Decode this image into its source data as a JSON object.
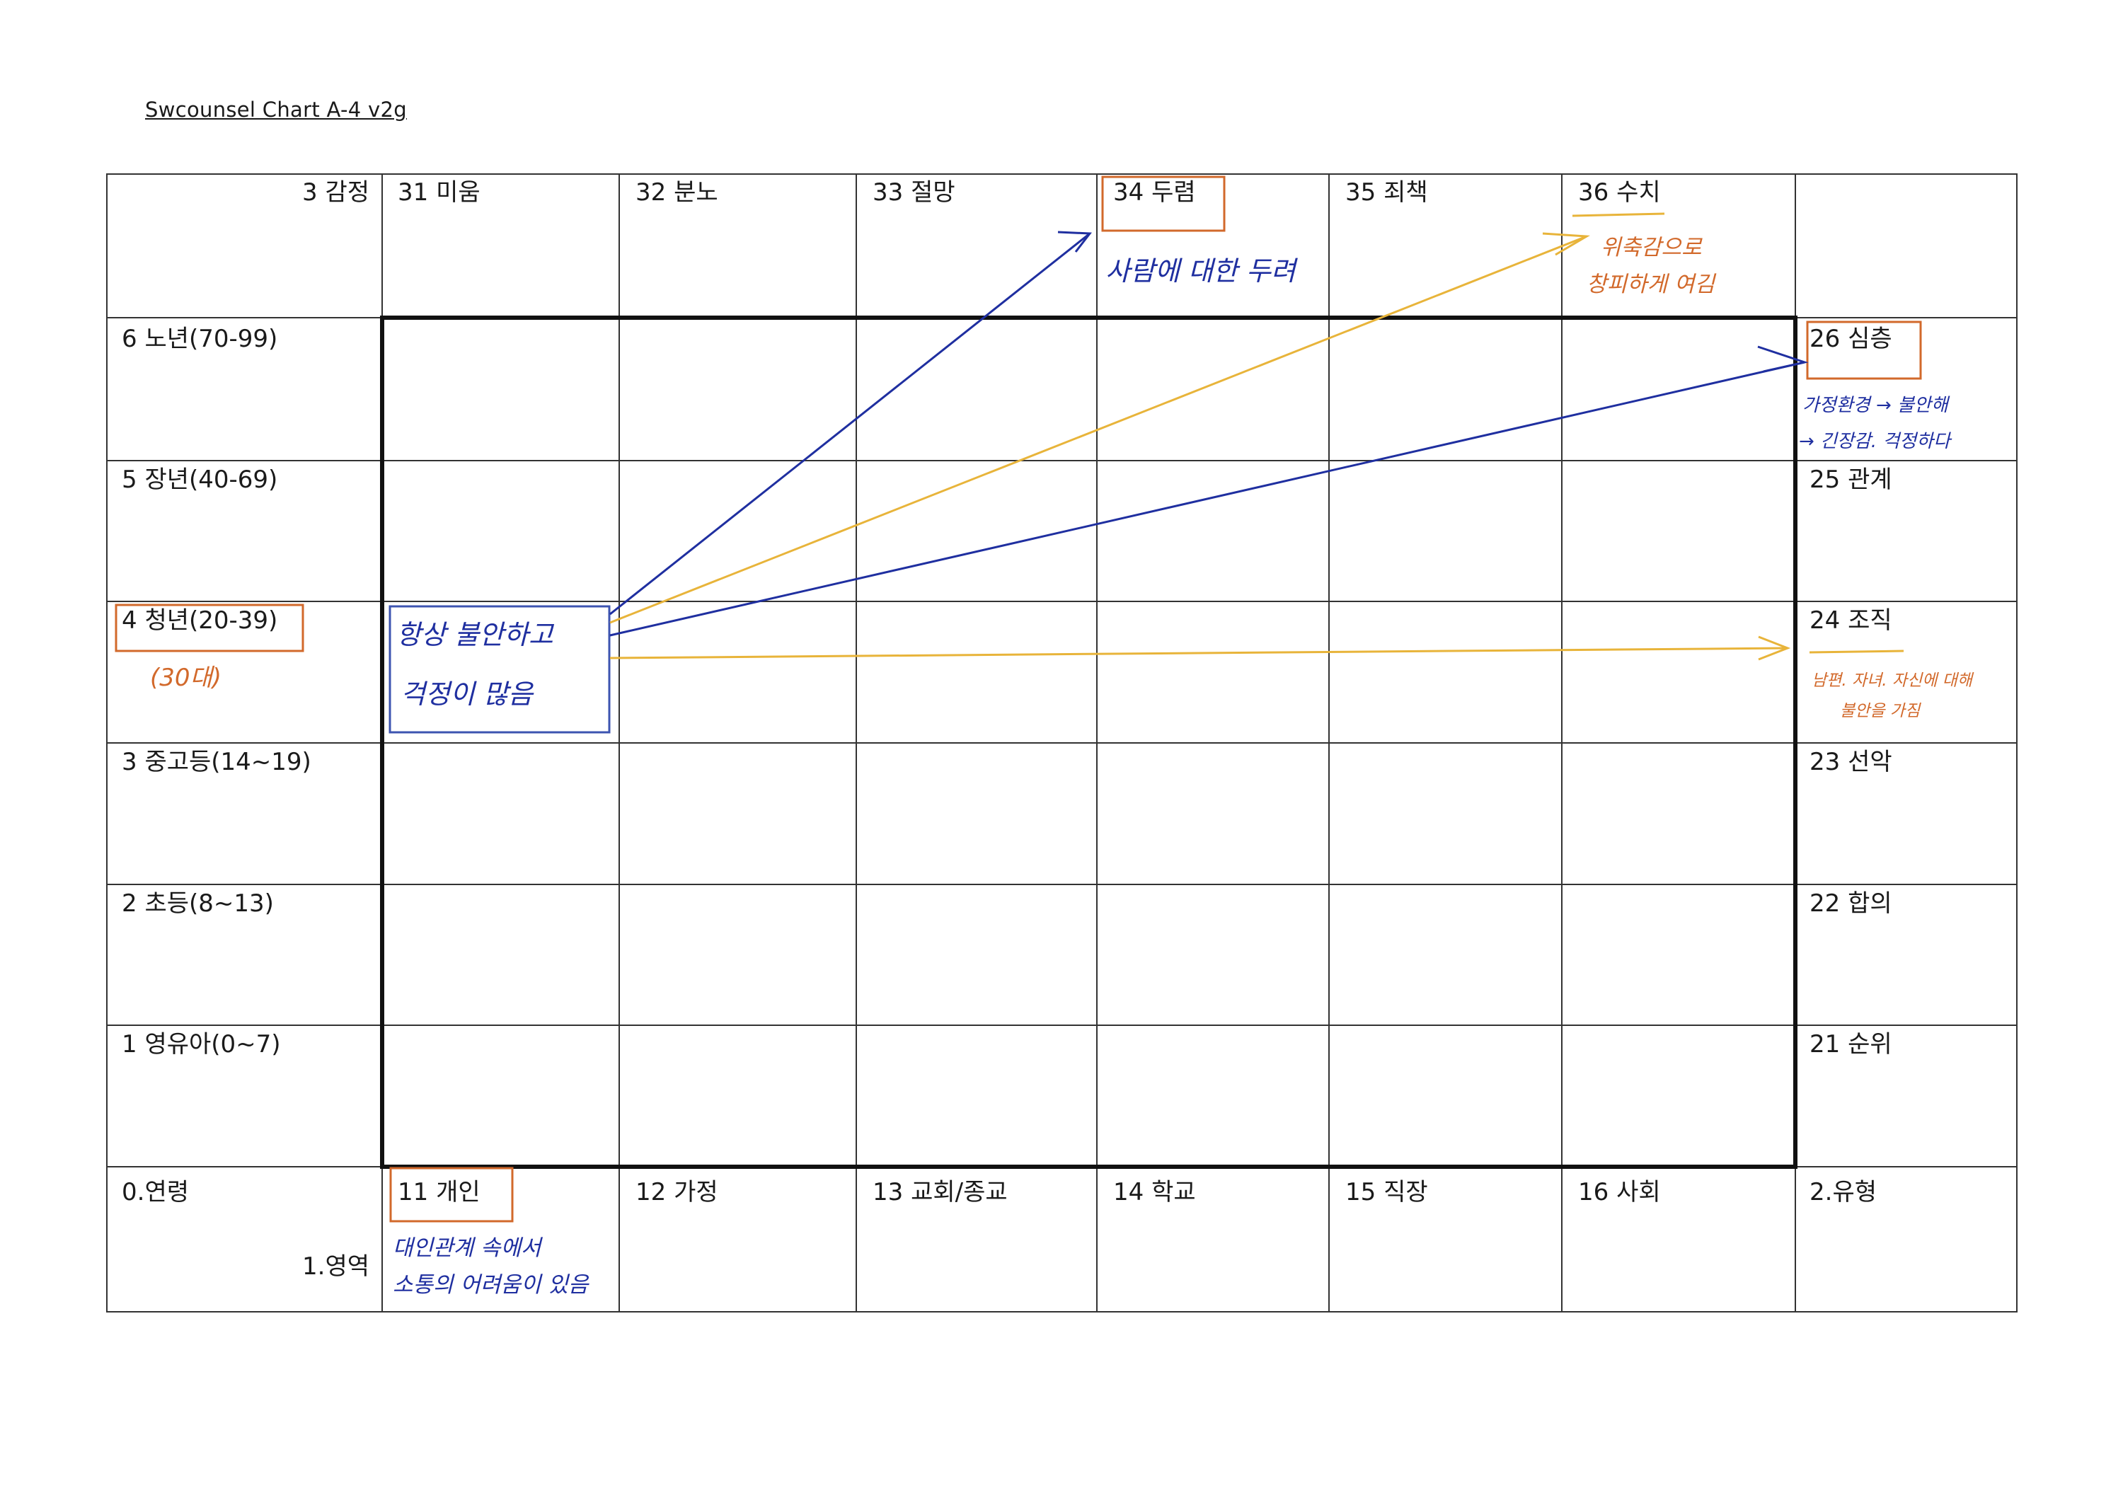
{
  "document": {
    "title": "Swcounsel Chart A-4 v2g"
  },
  "corner": {
    "emotion_axis": "3 감정",
    "age_axis": "0.연령",
    "domain_axis": "1.영역",
    "type_axis": "2.유형"
  },
  "emotions": [
    "31 미움",
    "32 분노",
    "33 절망",
    "34 두렴",
    "35 죄책",
    "36 수치"
  ],
  "ages": [
    "6 노년(70-99)",
    "5 장년(40-69)",
    "4 청년(20-39)",
    "3 중고등(14~19)",
    "2 초등(8~13)",
    "1 영유아(0~7)"
  ],
  "types": [
    "26 심층",
    "25 관계",
    "24 조직",
    "23 선악",
    "22 합의",
    "21 순위"
  ],
  "domains": [
    "11 개인",
    "12 가정",
    "13 교회/종교",
    "14 학교",
    "15 직장",
    "16 사회"
  ],
  "notes": {
    "age_note": "(30대)",
    "center_note_line1": "항상 불안하고",
    "center_note_line2": "걱정이 많음",
    "fear_note": "사람에 대한 두려",
    "shame_note_line1": "위축감으로",
    "shame_note_line2": "창피하게 여김",
    "deep_note_line1": "가정환경 → 불안해",
    "deep_note_line2": "→ 긴장감. 걱정하다",
    "org_note_line1": "남편. 자녀. 자신에 대해",
    "org_note_line2": "불안을 가짐",
    "individual_note_line1": "대인관계 속에서",
    "individual_note_line2": "소통의 어려움이 있음"
  },
  "colors": {
    "grid_line": "#333333",
    "blue_ink": "#1f2fa0",
    "orange_ink": "#d2692b",
    "yellow_line": "#e8b43a",
    "highlight_box": "#d2692b"
  }
}
